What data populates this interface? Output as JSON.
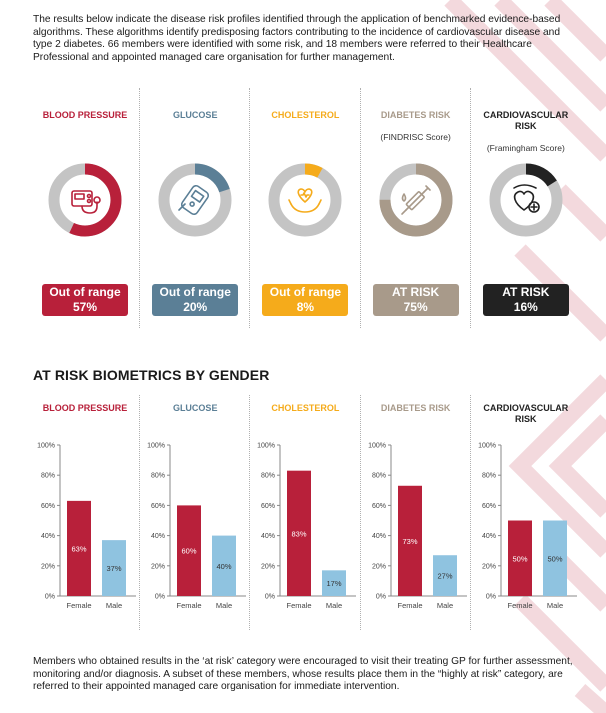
{
  "intro_text": "The results below indicate the disease risk profiles identified through the application of benchmarked evidence-based algorithms. These algorithms identify predisposing factors contributing to the incidence of cardiovascular disease and type 2 diabetes. 66 members were identified with some risk, and 18 members were referred to their Healthcare Professional and appointed managed care organisation for further management.",
  "outro_text": "Members who obtained results in the ‘at risk’ category were encouraged to visit their treating GP for further assessment, monitoring and/or diagnosis. A subset of these members, whose results place them in the “highly at risk” category, are referred to their appointed managed care organisation for immediate intervention.",
  "metrics": [
    {
      "title": "BLOOD PRESSURE",
      "subtitle": "",
      "status": "Out of range",
      "percent_label": "57%",
      "color": "#b8203a",
      "icon": "blood-pressure-monitor-icon"
    },
    {
      "title": "GLUCOSE",
      "subtitle": "",
      "status": "Out of range",
      "percent_label": "20%",
      "color": "#5b7f96",
      "icon": "glucose-meter-icon"
    },
    {
      "title": "CHOLESTEROL",
      "subtitle": "",
      "status": "Out of range",
      "percent_label": "8%",
      "color": "#f5ab1b",
      "icon": "heart-hands-icon"
    },
    {
      "title": "DIABETES RISK",
      "subtitle": "(FINDRISC Score)",
      "status": "AT RISK",
      "percent_label": "75%",
      "color": "#a89a8a",
      "icon": "syringe-icon"
    },
    {
      "title": "CARDIOVASCULAR RISK",
      "subtitle": "(Framingham Score)",
      "status": "AT RISK",
      "percent_label": "16%",
      "color": "#222222",
      "icon": "heart-plus-icon"
    }
  ],
  "section_title": "AT RISK BIOMETRICS BY GENDER",
  "colors": {
    "ring_track": "#c4c4c4",
    "female_bar": "#b8203a",
    "male_bar": "#8fc3e0",
    "axis": "#888888",
    "bg_pattern": "#f3d9dd"
  },
  "chart_data": [
    {
      "type": "donut",
      "title": "BLOOD PRESSURE",
      "value": 57,
      "max": 100
    },
    {
      "type": "donut",
      "title": "GLUCOSE",
      "value": 20,
      "max": 100
    },
    {
      "type": "donut",
      "title": "CHOLESTEROL",
      "value": 8,
      "max": 100
    },
    {
      "type": "donut",
      "title": "DIABETES RISK",
      "value": 75,
      "max": 100
    },
    {
      "type": "donut",
      "title": "CARDIOVASCULAR RISK",
      "value": 16,
      "max": 100
    },
    {
      "type": "bar",
      "title": "BLOOD PRESSURE",
      "categories": [
        "Female",
        "Male"
      ],
      "values": [
        63,
        37
      ],
      "labels": [
        "63%",
        "37%"
      ],
      "ylim": [
        0,
        100
      ],
      "yticks": [
        "0%",
        "20%",
        "40%",
        "60%",
        "80%",
        "100%"
      ]
    },
    {
      "type": "bar",
      "title": "GLUCOSE",
      "categories": [
        "Female",
        "Male"
      ],
      "values": [
        60,
        40
      ],
      "labels": [
        "60%",
        "40%"
      ],
      "ylim": [
        0,
        100
      ],
      "yticks": [
        "0%",
        "20%",
        "40%",
        "60%",
        "80%",
        "100%"
      ]
    },
    {
      "type": "bar",
      "title": "CHOLESTEROL",
      "categories": [
        "Female",
        "Male"
      ],
      "values": [
        83,
        17
      ],
      "labels": [
        "83%",
        "17%"
      ],
      "ylim": [
        0,
        100
      ],
      "yticks": [
        "0%",
        "20%",
        "40%",
        "60%",
        "80%",
        "100%"
      ]
    },
    {
      "type": "bar",
      "title": "DIABETES RISK",
      "categories": [
        "Female",
        "Male"
      ],
      "values": [
        73,
        27
      ],
      "labels": [
        "73%",
        "27%"
      ],
      "ylim": [
        0,
        100
      ],
      "yticks": [
        "0%",
        "20%",
        "40%",
        "60%",
        "80%",
        "100%"
      ]
    },
    {
      "type": "bar",
      "title": "CARDIOVASCULAR RISK",
      "categories": [
        "Female",
        "Male"
      ],
      "values": [
        50,
        50
      ],
      "labels": [
        "50%",
        "50%"
      ],
      "ylim": [
        0,
        100
      ],
      "yticks": [
        "0%",
        "20%",
        "40%",
        "60%",
        "80%",
        "100%"
      ]
    }
  ]
}
